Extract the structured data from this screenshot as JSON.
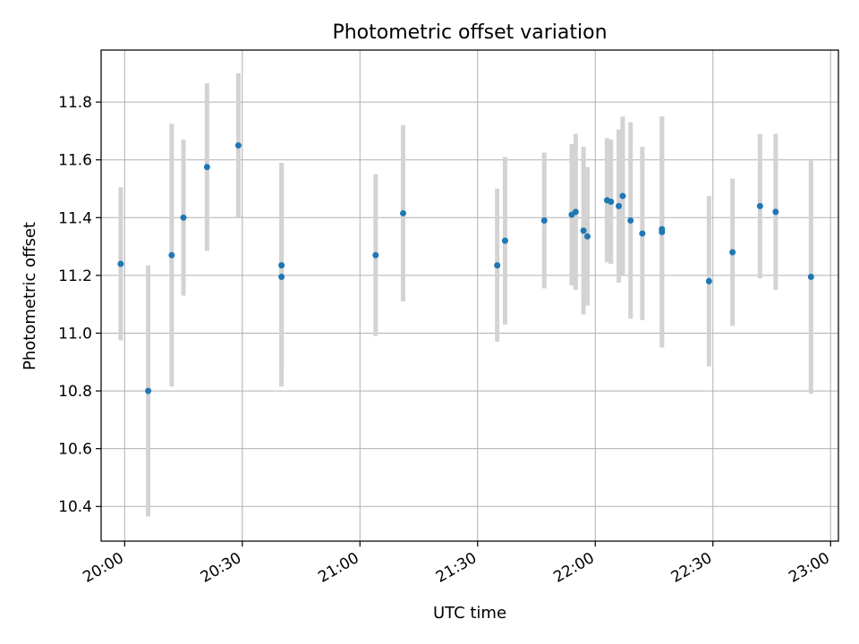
{
  "chart_data": {
    "type": "scatter",
    "title": "Photometric offset variation",
    "xlabel": "UTC time",
    "ylabel": "Photometric offset",
    "grid": true,
    "xlim": [
      "19:54",
      "23:02"
    ],
    "ylim": [
      10.28,
      11.98
    ],
    "x_ticks": [
      "20:00",
      "20:30",
      "21:00",
      "21:30",
      "22:00",
      "22:30",
      "23:00"
    ],
    "y_ticks": [
      "10.4",
      "10.6",
      "10.8",
      "11.0",
      "11.2",
      "11.4",
      "11.6",
      "11.8"
    ],
    "colors": {
      "point": "#1f77b4",
      "errorbar": "#d3d3d3",
      "grid": "#b0b0b0"
    },
    "points": [
      {
        "x": "19:59",
        "y": 11.24,
        "yerr": 0.265
      },
      {
        "x": "20:06",
        "y": 10.8,
        "yerr": 0.435
      },
      {
        "x": "20:12",
        "y": 11.27,
        "yerr": 0.455
      },
      {
        "x": "20:15",
        "y": 11.4,
        "yerr": 0.27
      },
      {
        "x": "20:21",
        "y": 11.575,
        "yerr": 0.29
      },
      {
        "x": "20:29",
        "y": 11.65,
        "yerr": 0.25
      },
      {
        "x": "20:40",
        "y": 11.235,
        "yerr": 0.355
      },
      {
        "x": "20:40",
        "y": 11.195,
        "yerr": 0.38
      },
      {
        "x": "21:04",
        "y": 11.27,
        "yerr": 0.28
      },
      {
        "x": "21:11",
        "y": 11.415,
        "yerr": 0.305
      },
      {
        "x": "21:35",
        "y": 11.235,
        "yerr": 0.265
      },
      {
        "x": "21:37",
        "y": 11.32,
        "yerr": 0.29
      },
      {
        "x": "21:47",
        "y": 11.39,
        "yerr": 0.235
      },
      {
        "x": "21:54",
        "y": 11.41,
        "yerr": 0.245
      },
      {
        "x": "21:55",
        "y": 11.42,
        "yerr": 0.27
      },
      {
        "x": "21:57",
        "y": 11.355,
        "yerr": 0.29
      },
      {
        "x": "21:58",
        "y": 11.335,
        "yerr": 0.24
      },
      {
        "x": "22:03",
        "y": 11.46,
        "yerr": 0.215
      },
      {
        "x": "22:04",
        "y": 11.455,
        "yerr": 0.215
      },
      {
        "x": "22:06",
        "y": 11.44,
        "yerr": 0.265
      },
      {
        "x": "22:07",
        "y": 11.475,
        "yerr": 0.275
      },
      {
        "x": "22:09",
        "y": 11.39,
        "yerr": 0.34
      },
      {
        "x": "22:12",
        "y": 11.345,
        "yerr": 0.3
      },
      {
        "x": "22:17",
        "y": 11.35,
        "yerr": 0.4
      },
      {
        "x": "22:17",
        "y": 11.36,
        "yerr": 0.39
      },
      {
        "x": "22:29",
        "y": 11.18,
        "yerr": 0.295
      },
      {
        "x": "22:35",
        "y": 11.28,
        "yerr": 0.255
      },
      {
        "x": "22:42",
        "y": 11.44,
        "yerr": 0.25
      },
      {
        "x": "22:46",
        "y": 11.42,
        "yerr": 0.27
      },
      {
        "x": "22:55",
        "y": 11.195,
        "yerr": 0.405
      }
    ]
  }
}
